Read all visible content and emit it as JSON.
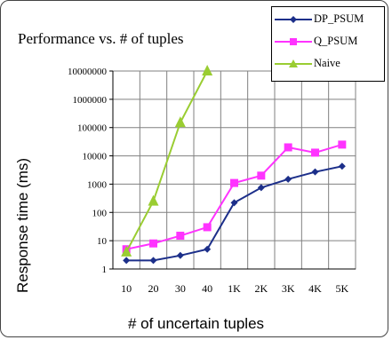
{
  "chart_data": {
    "type": "line",
    "title": "Performance vs. # of tuples",
    "xlabel": "# of uncertain tuples",
    "ylabel": "Response time (ms)",
    "y_scale": "log",
    "ylim": [
      1,
      10000000
    ],
    "y_ticks": [
      "1",
      "10",
      "100",
      "1000",
      "10000",
      "100000",
      "1000000",
      "10000000"
    ],
    "categories": [
      "10",
      "20",
      "30",
      "40",
      "1K",
      "2K",
      "3K",
      "4K",
      "5K"
    ],
    "grid": true,
    "legend_position": "top-right",
    "series": [
      {
        "name": "DP_PSUM",
        "color": "#1c2f8a",
        "marker": "diamond",
        "values": [
          2,
          2,
          3,
          5,
          220,
          750,
          1500,
          2700,
          4300
        ]
      },
      {
        "name": "Q_PSUM",
        "color": "#ff33ff",
        "marker": "square",
        "values": [
          5,
          8,
          15,
          30,
          1100,
          2000,
          20000,
          13000,
          25000
        ]
      },
      {
        "name": "Naive",
        "color": "#9acd32",
        "marker": "triangle",
        "values": [
          4,
          250,
          150000,
          10000000,
          null,
          null,
          null,
          null,
          null
        ]
      }
    ]
  }
}
